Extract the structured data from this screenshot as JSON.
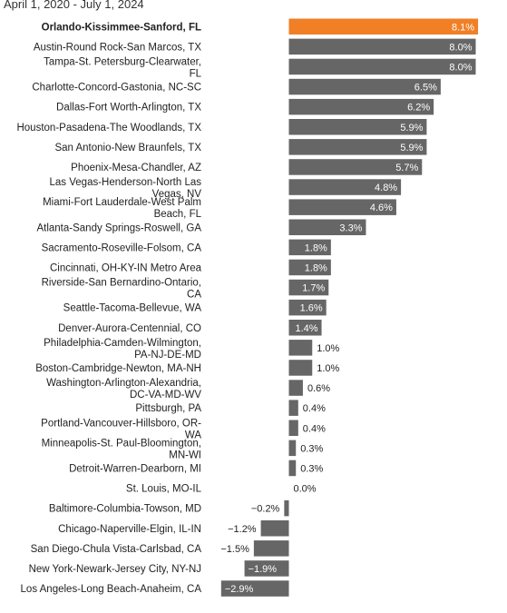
{
  "subtitle": "April 1, 2020 - July 1, 2024",
  "colors": {
    "highlight": "#f07f26",
    "bar": "#666666",
    "label_inside": "#ffffff",
    "label_outside": "#222222"
  },
  "chart_data": {
    "type": "bar",
    "orientation": "horizontal",
    "title": "",
    "subtitle": "April 1, 2020 - July 1, 2024",
    "xlabel": "",
    "ylabel": "",
    "value_suffix": "%",
    "highlight_category": "Orlando-Kissimmee-Sanford, FL",
    "grid": false,
    "categories": [
      "Orlando-Kissimmee-Sanford, FL",
      "Austin-Round Rock-San Marcos, TX",
      "Tampa-St. Petersburg-Clearwater, FL",
      "Charlotte-Concord-Gastonia, NC-SC",
      "Dallas-Fort Worth-Arlington, TX",
      "Houston-Pasadena-The Woodlands, TX",
      "San Antonio-New Braunfels, TX",
      "Phoenix-Mesa-Chandler, AZ",
      "Las Vegas-Henderson-North Las Vegas, NV",
      "Miami-Fort Lauderdale-West Palm Beach, FL",
      "Atlanta-Sandy Springs-Roswell, GA",
      "Sacramento-Roseville-Folsom, CA",
      "Cincinnati, OH-KY-IN Metro Area",
      "Riverside-San Bernardino-Ontario, CA",
      "Seattle-Tacoma-Bellevue, WA",
      "Denver-Aurora-Centennial, CO",
      "Philadelphia-Camden-Wilmington, PA-NJ-DE-MD",
      "Boston-Cambridge-Newton, MA-NH",
      "Washington-Arlington-Alexandria, DC-VA-MD-WV",
      "Pittsburgh, PA",
      "Portland-Vancouver-Hillsboro, OR-WA",
      "Minneapolis-St. Paul-Bloomington, MN-WI",
      "Detroit-Warren-Dearborn, MI",
      "St. Louis, MO-IL",
      "Baltimore-Columbia-Towson, MD",
      "Chicago-Naperville-Elgin, IL-IN",
      "San Diego-Chula Vista-Carlsbad, CA",
      "New York-Newark-Jersey City, NY-NJ",
      "Los Angeles-Long Beach-Anaheim, CA"
    ],
    "values": [
      8.1,
      8.0,
      8.0,
      6.5,
      6.2,
      5.9,
      5.9,
      5.7,
      4.8,
      4.6,
      3.3,
      1.8,
      1.8,
      1.7,
      1.6,
      1.4,
      1.0,
      1.0,
      0.6,
      0.4,
      0.4,
      0.3,
      0.3,
      0.0,
      -0.2,
      -1.2,
      -1.5,
      -1.9,
      -2.9
    ],
    "value_labels": [
      "8.1%",
      "8.0%",
      "8.0%",
      "6.5%",
      "6.2%",
      "5.9%",
      "5.9%",
      "5.7%",
      "4.8%",
      "4.6%",
      "3.3%",
      "1.8%",
      "1.8%",
      "1.7%",
      "1.6%",
      "1.4%",
      "1.0%",
      "1.0%",
      "0.6%",
      "0.4%",
      "0.4%",
      "0.3%",
      "0.3%",
      "0.0%",
      "−0.2%",
      "−1.2%",
      "−1.5%",
      "−1.9%",
      "−2.9%"
    ],
    "xlim": [
      -2.9,
      8.1
    ]
  }
}
